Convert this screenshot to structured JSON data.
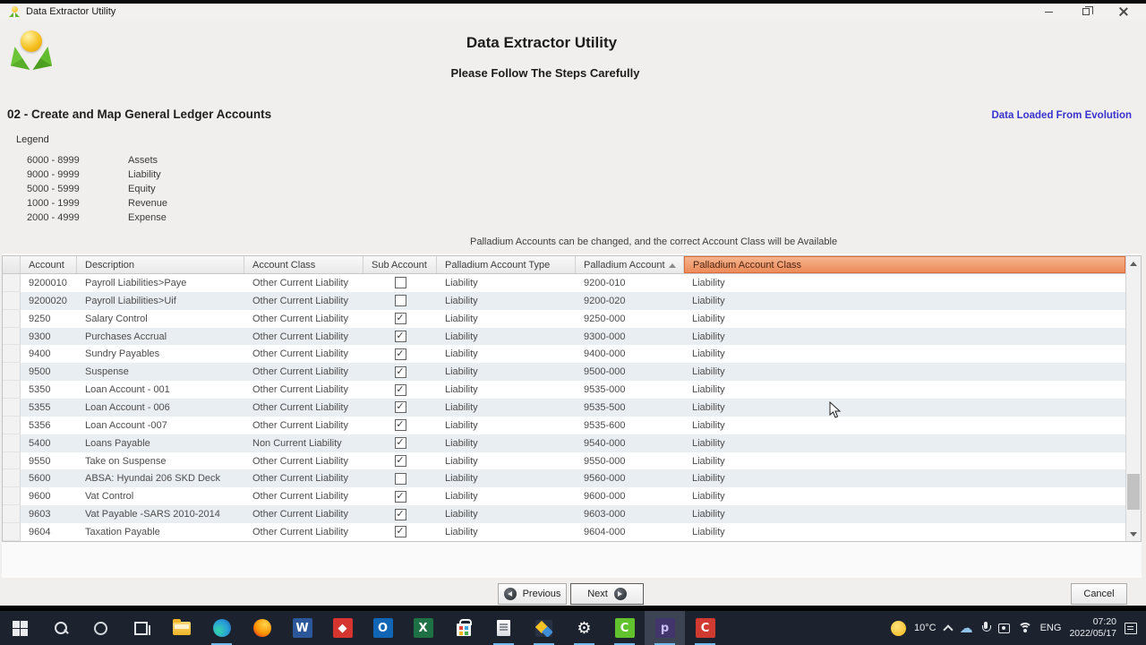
{
  "window": {
    "title": "Data Extractor Utility"
  },
  "header": {
    "title": "Data Extractor Utility",
    "subtitle": "Please Follow The Steps Carefully"
  },
  "section": {
    "title": "02 - Create and Map General Ledger Accounts",
    "status_label": "Data Loaded From Evolution"
  },
  "legend": {
    "label": "Legend",
    "items": [
      {
        "range": "6000 - 8999",
        "label": "Assets"
      },
      {
        "range": "9000 - 9999",
        "label": "Liability"
      },
      {
        "range": "5000 - 5999",
        "label": "Equity"
      },
      {
        "range": "1000 - 1999",
        "label": "Revenue"
      },
      {
        "range": "2000 - 4999",
        "label": "Expense"
      }
    ]
  },
  "info_text": "Palladium Accounts can be changed, and the correct Account Class will be Available",
  "table": {
    "columns": [
      "Account",
      "Description",
      "Account Class",
      "Sub Account",
      "Palladium Account Type",
      "Palladium Account",
      "Palladium Account Class"
    ],
    "rows": [
      {
        "account": "9200010",
        "description": "Payroll Liabilities>Paye",
        "account_class": "Other Current Liability",
        "sub_account": false,
        "palladium_account_type": "Liability",
        "palladium_account": "9200-010",
        "palladium_account_class": "Liability"
      },
      {
        "account": "9200020",
        "description": "Payroll Liabilities>Uif",
        "account_class": "Other Current Liability",
        "sub_account": false,
        "palladium_account_type": "Liability",
        "palladium_account": "9200-020",
        "palladium_account_class": "Liability"
      },
      {
        "account": "9250",
        "description": "Salary Control",
        "account_class": "Other Current Liability",
        "sub_account": true,
        "palladium_account_type": "Liability",
        "palladium_account": "9250-000",
        "palladium_account_class": "Liability"
      },
      {
        "account": "9300",
        "description": "Purchases Accrual",
        "account_class": "Other Current Liability",
        "sub_account": true,
        "palladium_account_type": "Liability",
        "palladium_account": "9300-000",
        "palladium_account_class": "Liability"
      },
      {
        "account": "9400",
        "description": "Sundry Payables",
        "account_class": "Other Current Liability",
        "sub_account": true,
        "palladium_account_type": "Liability",
        "palladium_account": "9400-000",
        "palladium_account_class": "Liability"
      },
      {
        "account": "9500",
        "description": "Suspense",
        "account_class": "Other Current Liability",
        "sub_account": true,
        "palladium_account_type": "Liability",
        "palladium_account": "9500-000",
        "palladium_account_class": "Liability"
      },
      {
        "account": "5350",
        "description": "Loan Account - 001",
        "account_class": "Other Current Liability",
        "sub_account": true,
        "palladium_account_type": "Liability",
        "palladium_account": "9535-000",
        "palladium_account_class": "Liability"
      },
      {
        "account": "5355",
        "description": "Loan Account - 006",
        "account_class": "Other Current Liability",
        "sub_account": true,
        "palladium_account_type": "Liability",
        "palladium_account": "9535-500",
        "palladium_account_class": "Liability"
      },
      {
        "account": "5356",
        "description": "Loan Account -007",
        "account_class": "Other Current Liability",
        "sub_account": true,
        "palladium_account_type": "Liability",
        "palladium_account": "9535-600",
        "palladium_account_class": "Liability"
      },
      {
        "account": "5400",
        "description": "Loans Payable",
        "account_class": "Non Current Liability",
        "sub_account": true,
        "palladium_account_type": "Liability",
        "palladium_account": "9540-000",
        "palladium_account_class": "Liability"
      },
      {
        "account": "9550",
        "description": "Take on Suspense",
        "account_class": "Other Current Liability",
        "sub_account": true,
        "palladium_account_type": "Liability",
        "palladium_account": "9550-000",
        "palladium_account_class": "Liability"
      },
      {
        "account": "5600",
        "description": "ABSA: Hyundai 206 SKD Deck",
        "account_class": "Other Current Liability",
        "sub_account": false,
        "palladium_account_type": "Liability",
        "palladium_account": "9560-000",
        "palladium_account_class": "Liability"
      },
      {
        "account": "9600",
        "description": "Vat Control",
        "account_class": "Other Current Liability",
        "sub_account": true,
        "palladium_account_type": "Liability",
        "palladium_account": "9600-000",
        "palladium_account_class": "Liability"
      },
      {
        "account": "9603",
        "description": "Vat Payable -SARS 2010-2014",
        "account_class": "Other Current Liability",
        "sub_account": true,
        "palladium_account_type": "Liability",
        "palladium_account": "9603-000",
        "palladium_account_class": "Liability"
      },
      {
        "account": "9604",
        "description": "Taxation Payable",
        "account_class": "Other Current Liability",
        "sub_account": true,
        "palladium_account_type": "Liability",
        "palladium_account": "9604-000",
        "palladium_account_class": "Liability"
      }
    ]
  },
  "buttons": {
    "previous": "Previous",
    "next": "Next",
    "cancel": "Cancel"
  },
  "colors": {
    "accent_orange": "#ec8a5a",
    "status_blue": "#3832cf",
    "taskbar_bg": "#1c222e",
    "open_indicator_blue": "#76b9ed",
    "row_alt": "#e9eef2"
  },
  "taskbar": {
    "icons": [
      {
        "name": "start-button",
        "kind": "css",
        "open": false,
        "active": false
      },
      {
        "name": "search-icon",
        "kind": "css",
        "open": false,
        "active": false
      },
      {
        "name": "cortana-icon",
        "kind": "css",
        "open": false,
        "active": false
      },
      {
        "name": "task-view-icon",
        "kind": "css",
        "open": false,
        "active": false
      },
      {
        "name": "file-explorer-icon",
        "kind": "css",
        "open": false,
        "active": false
      },
      {
        "name": "edge-icon",
        "kind": "css",
        "open": true,
        "active": false
      },
      {
        "name": "firefox-icon",
        "kind": "css",
        "open": false,
        "active": false
      },
      {
        "name": "word-icon",
        "kind": "glyph",
        "glyph": "W",
        "bg": "#2b579a",
        "fg": "#ffffff",
        "open": false,
        "active": false
      },
      {
        "name": "media-app-icon",
        "kind": "glyph",
        "glyph": "◆",
        "bg": "#d6352f",
        "fg": "#ffffff",
        "open": false,
        "active": false
      },
      {
        "name": "outlook-icon",
        "kind": "glyph",
        "glyph": "O",
        "bg": "#1066b5",
        "fg": "#ffffff",
        "open": false,
        "active": false
      },
      {
        "name": "excel-icon",
        "kind": "glyph",
        "glyph": "X",
        "bg": "#1e7145",
        "fg": "#ffffff",
        "open": false,
        "active": false
      },
      {
        "name": "store-icon",
        "kind": "css",
        "open": false,
        "active": false
      },
      {
        "name": "notepad-icon",
        "kind": "css",
        "open": true,
        "active": false
      },
      {
        "name": "photos-app-icon",
        "kind": "css",
        "open": true,
        "active": false
      },
      {
        "name": "settings-gear-icon",
        "kind": "glyph",
        "glyph": "⚙",
        "bg": "transparent",
        "fg": "#ffffff",
        "open": true,
        "active": false
      },
      {
        "name": "camtasia-icon",
        "kind": "glyph",
        "glyph": "C",
        "bg": "#62c22e",
        "fg": "#ffffff",
        "open": true,
        "active": false
      },
      {
        "name": "palladium-app-icon",
        "kind": "glyph",
        "glyph": "p",
        "bg": "#41356b",
        "fg": "#cabdf5",
        "open": true,
        "active": true
      },
      {
        "name": "camtasia-recorder-icon",
        "kind": "glyph",
        "glyph": "C",
        "bg": "#d03a31",
        "fg": "#ffffff",
        "open": true,
        "active": false
      }
    ],
    "tray_icons": [
      "weather-sun-icon",
      "chevron-up-icon",
      "onedrive-icon",
      "microphone-icon",
      "meet-now-icon",
      "wifi-icon"
    ],
    "tray": {
      "temperature": "10°C",
      "language": "ENG",
      "time": "07:20",
      "date": "2022/05/17"
    }
  }
}
